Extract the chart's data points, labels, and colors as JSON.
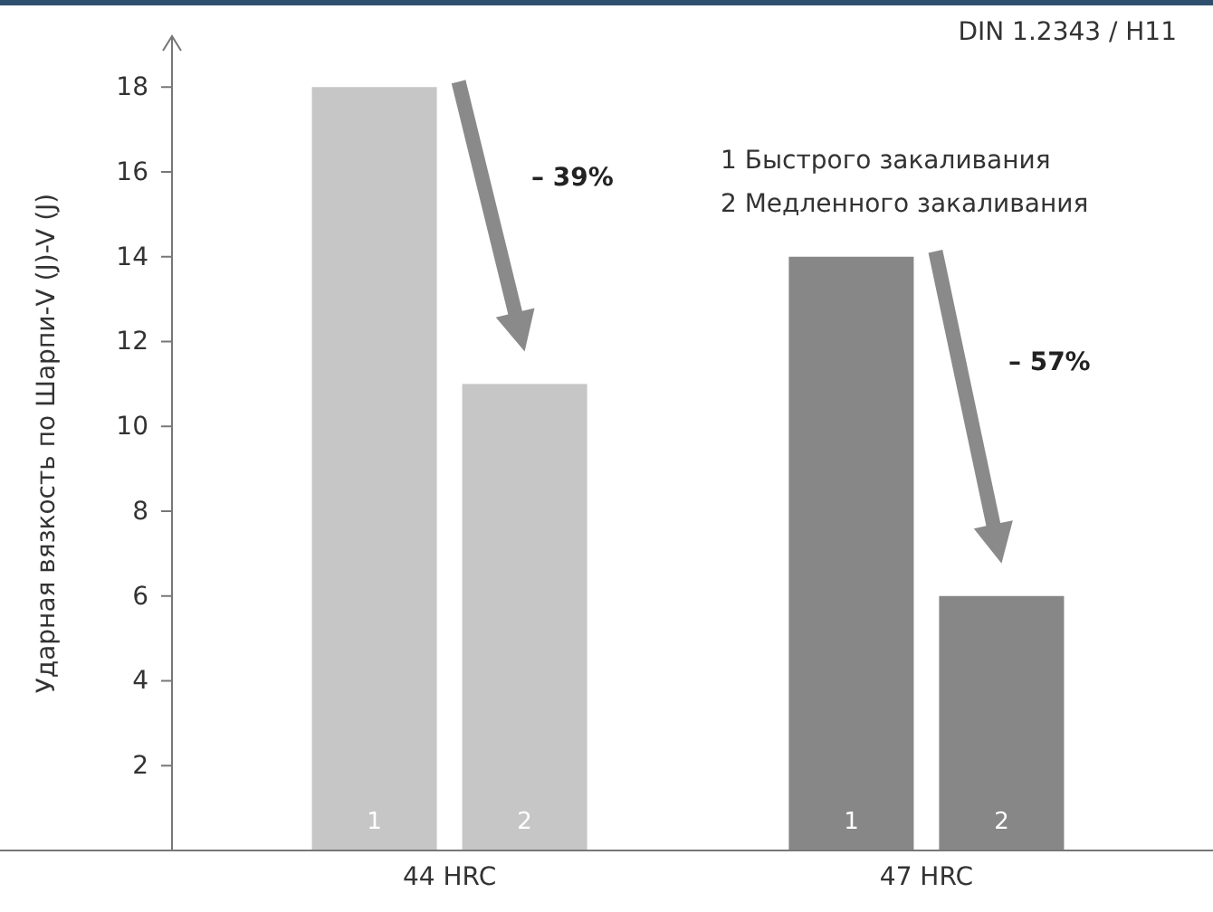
{
  "chart_data": {
    "type": "bar",
    "title": "DIN 1.2343 / H11",
    "ylabel": "Ударная вязкость по Шарпи-V (J)-V (J)",
    "categories": [
      "44 HRC",
      "47 HRC"
    ],
    "series": [
      {
        "name": "1",
        "colors": [
          "#c6c6c6",
          "#878787"
        ],
        "values": [
          18,
          14
        ]
      },
      {
        "name": "2",
        "colors": [
          "#c6c6c6",
          "#878787"
        ],
        "values": [
          11,
          6
        ]
      }
    ],
    "ylim": [
      0,
      19.2
    ],
    "yticks": [
      2,
      4,
      6,
      8,
      10,
      12,
      14,
      16,
      18
    ],
    "annotations": [
      "1 Быстрого закаливания",
      "2 Медленного закаливания",
      "– 39%",
      "– 57%"
    ]
  }
}
